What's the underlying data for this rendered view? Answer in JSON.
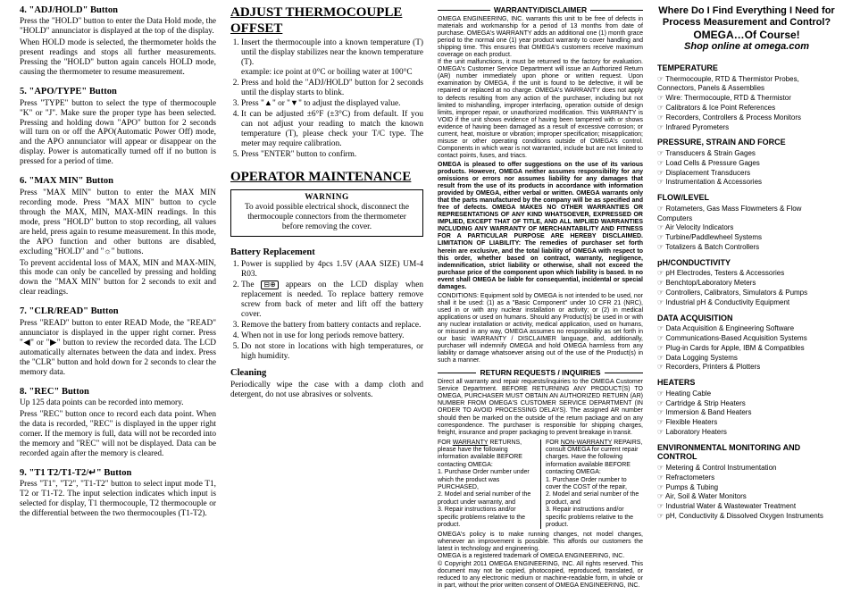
{
  "col1": {
    "s4": {
      "title": "4. \"ADJ/HOLD\" Button",
      "p1": "Press the \"HOLD\" button to enter the Data Hold mode, the \"HOLD\" annunciator is displayed at the top of the display.",
      "p2": "When HOLD mode is selected, the thermometer holds the present readings and stops all further measurements. Pressing the \"HOLD\" button again cancels HOLD mode, causing the thermometer to resume measurement."
    },
    "s5": {
      "title": "5. \"APO/TYPE\" Button",
      "p1": "Press \"TYPE\" button to select the type of thermocouple \"K\" or \"J\". Make sure the proper type has been selected. Pressing and holding down \"APO\" button for 2 seconds will turn on or off the APO(Automatic Power Off) mode, and the APO annunciator will appear or disappear on the display. Power is automatically turned off if no button is pressed for a period of time."
    },
    "s6": {
      "title": "6. \"MAX MIN\" Button",
      "p1": "Press \"MAX MIN\" button to enter the MAX MIN recording mode. Press \"MAX MIN\" button to cycle through the MAX, MIN, MAX-MIN readings. In this mode, press \"HOLD\" button to stop recording, all values are held, press again to resume measurement. In this mode, the APO function and other buttons are disabled, excluding \"HOLD\" and \"☼\" buttons.",
      "p2": "To prevent accidental loss of MAX, MIN and MAX-MIN, this mode can only be cancelled by pressing and holding down the \"MAX MIN\" button for 2 seconds to exit and clear readings."
    },
    "s7": {
      "title": "7. \"CLR/READ\" Button",
      "p1": "Press \"READ\" button to enter READ Mode, the \"READ\" annunciator is displayed in the upper right corner. Press \"◀\" or \"▶\" button to review the recorded data. The LCD automatically alternates between the data and index. Press the \"CLR\" button and hold down for 2 seconds to clear the memory data."
    },
    "s8": {
      "title": "8. \"REC\" Button",
      "p1": "Up 125 data points can be recorded into memory.",
      "p2": "Press \"REC\" button once to record each data point. When the data is recorded, \"REC\" is displayed in the upper right corner. If the memory is full, data will not be recorded into the memory and \"REC\" will not be displayed. Data can be recorded again after the memory is cleared."
    },
    "s9": {
      "title": "9. \"T1 T2/T1-T2/↵\" Button",
      "p1": "Press \"T1\", \"T2\", \"T1-T2\" button to select input mode T1, T2 or T1-T2. The input selection indicates which input is selected for display, T1 thermocouple, T2 thermocouple or the differential between the two thermocouples (T1-T2)."
    }
  },
  "col2": {
    "adjTitle": "ADJUST THERMOCOUPLE OFFSET",
    "adj": [
      "Insert the thermocouple into a known temperature (T) until the display stabilizes near the known temperature (T).\nexample: ice point at 0°C or boiling water at 100°C",
      "Press and hold the \"ADJ/HOLD\" button for 2 seconds until the display starts to blink.",
      "Press \"▲\" or \"▼\" to adjust the displayed value.",
      "It can be adjusted ±6°F (±3°C) from default. If you can not adjust your reading to match the known temperature (T), please check your T/C type. The meter may require calibration.",
      "Press \"ENTER\" button to confirm."
    ],
    "opTitle": "OPERATOR MAINTENANCE",
    "warnTitle": "WARNING",
    "warnBody": "To avoid possible electrical shock, disconnect the thermocouple connectors from the thermometer before removing the cover.",
    "battTitle": "Battery Replacement",
    "batt": [
      "Power is supplied by 4pcs 1.5V (AAA SIZE) UM-4 R03.",
      "The BAT appears on the LCD display when replacement is needed. To replace battery remove screw from back of meter and lift off the battery cover.",
      "Remove the battery from battery contacts and replace.",
      "When not in use for long periods remove battery.",
      "Do not store in locations with high temperatures, or high humidity."
    ],
    "cleanTitle": "Cleaning",
    "cleanBody": "Periodically wipe the case with a damp cloth and detergent, do not use abrasives or solvents."
  },
  "col3": {
    "wdTitle": "WARRANTY/DISCLAIMER",
    "wdBody": "OMEGA ENGINEERING, INC. warrants this unit to be free of defects in materials and workmanship for a period of 13 months from date of purchase. OMEGA's WARRANTY adds an additional one (1) month grace period to the normal one (1) year product warranty to cover handling and shipping time. This ensures that OMEGA's customers receive maximum coverage on each product.\nIf the unit malfunctions, it must be returned to the factory for evaluation. OMEGA's Customer Service Department will issue an Authorized Return (AR) number immediately upon phone or written request. Upon examination by OMEGA, if the unit is found to be defective, it will be repaired or replaced at no charge. OMEGA's WARRANTY does not apply to defects resulting from any action of the purchaser, including but not limited to mishandling, improper interfacing, operation outside of design limits, improper repair, or unauthorized modification. This WARRANTY is VOID if the unit shows evidence of having been tampered with or shows evidence of having been damaged as a result of excessive corrosion; or current, heat, moisture or vibration; improper specification; misapplication; misuse or other operating conditions outside of OMEGA's control. Components in which wear is not warranted, include but are not limited to contact points, fuses, and triacs.",
    "wdBold": "OMEGA is pleased to offer suggestions on the use of its various products. However, OMEGA neither assumes responsibility for any omissions or errors nor assumes liability for any damages that result from the use of its products in accordance with information provided by OMEGA, either verbal or written. OMEGA warrants only that the parts manufactured by the company will be as specified and free of defects. OMEGA MAKES NO OTHER WARRANTIES OR REPRESENTATIONS OF ANY KIND WHATSOEVER, EXPRESSED OR IMPLIED, EXCEPT THAT OF TITLE, AND ALL IMPLIED WARRANTIES INCLUDING ANY WARRANTY OF MERCHANTABILITY AND FITNESS FOR A PARTICULAR PURPOSE ARE HEREBY DISCLAIMED. LIMITATION OF LIABILITY: The remedies of purchaser set forth herein are exclusive, and the total liability of OMEGA with respect to this order, whether based on contract, warranty, negligence, indemnification, strict liability or otherwise, shall not exceed the purchase price of the component upon which liability is based. In no event shall OMEGA be liable for consequential, incidental or special damages.",
    "wdCond": "CONDITIONS: Equipment sold by OMEGA is not intended to be used, nor shall it be used: (1) as a \"Basic Component\" under 10 CFR 21 (NRC), used in or with any nuclear installation or activity; or (2) in medical applications or used on humans. Should any Product(s) be used in or with any nuclear installation or activity, medical application, used on humans, or misused in any way, OMEGA assumes no responsibility as set forth in our basic WARRANTY / DISCLAIMER language, and, additionally, purchaser will indemnify OMEGA and hold OMEGA harmless from any liability or damage whatsoever arising out of the use of the Product(s) in such a manner.",
    "rrTitle": "RETURN REQUESTS / INQUIRIES",
    "rrBody": "Direct all warranty and repair requests/inquiries to the OMEGA Customer Service Department. BEFORE RETURNING ANY PRODUCT(S) TO OMEGA, PURCHASER MUST OBTAIN AN AUTHORIZED RETURN (AR) NUMBER FROM OMEGA'S CUSTOMER SERVICE DEPARTMENT (IN ORDER TO AVOID PROCESSING DELAYS). The assigned AR number should then be marked on the outside of the return package and on any correspondence. The purchaser is responsible for shipping charges, freight, insurance and proper packaging to prevent breakage in transit.",
    "leftHead": "FOR WARRANTY RETURNS, please have the following information available BEFORE contacting OMEGA:",
    "leftItems": [
      "1. Purchase Order number under which the product was PURCHASED,",
      "2. Model and serial number of the product under warranty, and",
      "3. Repair instructions and/or specific problems relative to the product."
    ],
    "rightHead": "FOR NON-WARRANTY REPAIRS, consult OMEGA for current repair charges. Have the following information available BEFORE contacting OMEGA:",
    "rightItems": [
      "1. Purchase Order number to cover the COST of the repair,",
      "2. Model and serial number of the product, and",
      "3. Repair instructions and/or specific problems relative to the product."
    ],
    "foot": "OMEGA's policy is to make running changes, not model changes, whenever an improvement is possible. This affords our customers the latest in technology and engineering.\nOMEGA is a registered trademark of OMEGA ENGINEERING, INC.\n© Copyright 2011 OMEGA ENGINEERING, INC. All rights reserved. This document may not be copied, photocopied, reproduced, translated, or reduced to any electronic medium or machine-readable form, in whole or in part, without the prior written consent of OMEGA ENGINEERING, INC."
  },
  "col4": {
    "head1": "Where Do I Find Everything I Need for",
    "head2": "Process Measurement and Control?",
    "head3": "OMEGA…Of Course!",
    "head4": "Shop online at omega.com",
    "cats": [
      {
        "title": "TEMPERATURE",
        "items": [
          "Thermocouple, RTD & Thermistor Probes, Connectors, Panels & Assemblies",
          "Wire: Thermocouple, RTD & Thermistor",
          "Calibrators & Ice Point References",
          "Recorders, Controllers & Process Monitors",
          "Infrared Pyrometers"
        ]
      },
      {
        "title": "PRESSURE, STRAIN AND FORCE",
        "items": [
          "Transducers & Strain Gages",
          "Load Cells & Pressure Gages",
          "Displacement Transducers",
          "Instrumentation & Accessories"
        ]
      },
      {
        "title": "FLOW/LEVEL",
        "items": [
          "Rotameters, Gas Mass Flowmeters & Flow Computers",
          "Air Velocity Indicators",
          "Turbine/Paddlewheel Systems",
          "Totalizers & Batch Controllers"
        ]
      },
      {
        "title": "pH/CONDUCTIVITY",
        "items": [
          "pH Electrodes, Testers & Accessories",
          "Benchtop/Laboratory Meters",
          "Controllers, Calibrators, Simulators & Pumps",
          "Industrial pH & Conductivity Equipment"
        ]
      },
      {
        "title": "DATA ACQUISITION",
        "items": [
          "Data Acquisition & Engineering Software",
          "Communications-Based Acquisition Systems",
          "Plug-in Cards for Apple, IBM & Compatibles",
          "Data Logging Systems",
          "Recorders, Printers & Plotters"
        ]
      },
      {
        "title": "HEATERS",
        "items": [
          "Heating Cable",
          "Cartridge & Strip Heaters",
          "Immersion & Band Heaters",
          "Flexible Heaters",
          "Laboratory Heaters"
        ]
      },
      {
        "title": "ENVIRONMENTAL MONITORING AND CONTROL",
        "items": [
          "Metering & Control Instrumentation",
          "Refractometers",
          "Pumps & Tubing",
          "Air, Soil & Water Monitors",
          "Industrial Water & Wastewater Treatment",
          "pH, Conductivity & Dissolved Oxygen Instruments"
        ]
      }
    ]
  }
}
